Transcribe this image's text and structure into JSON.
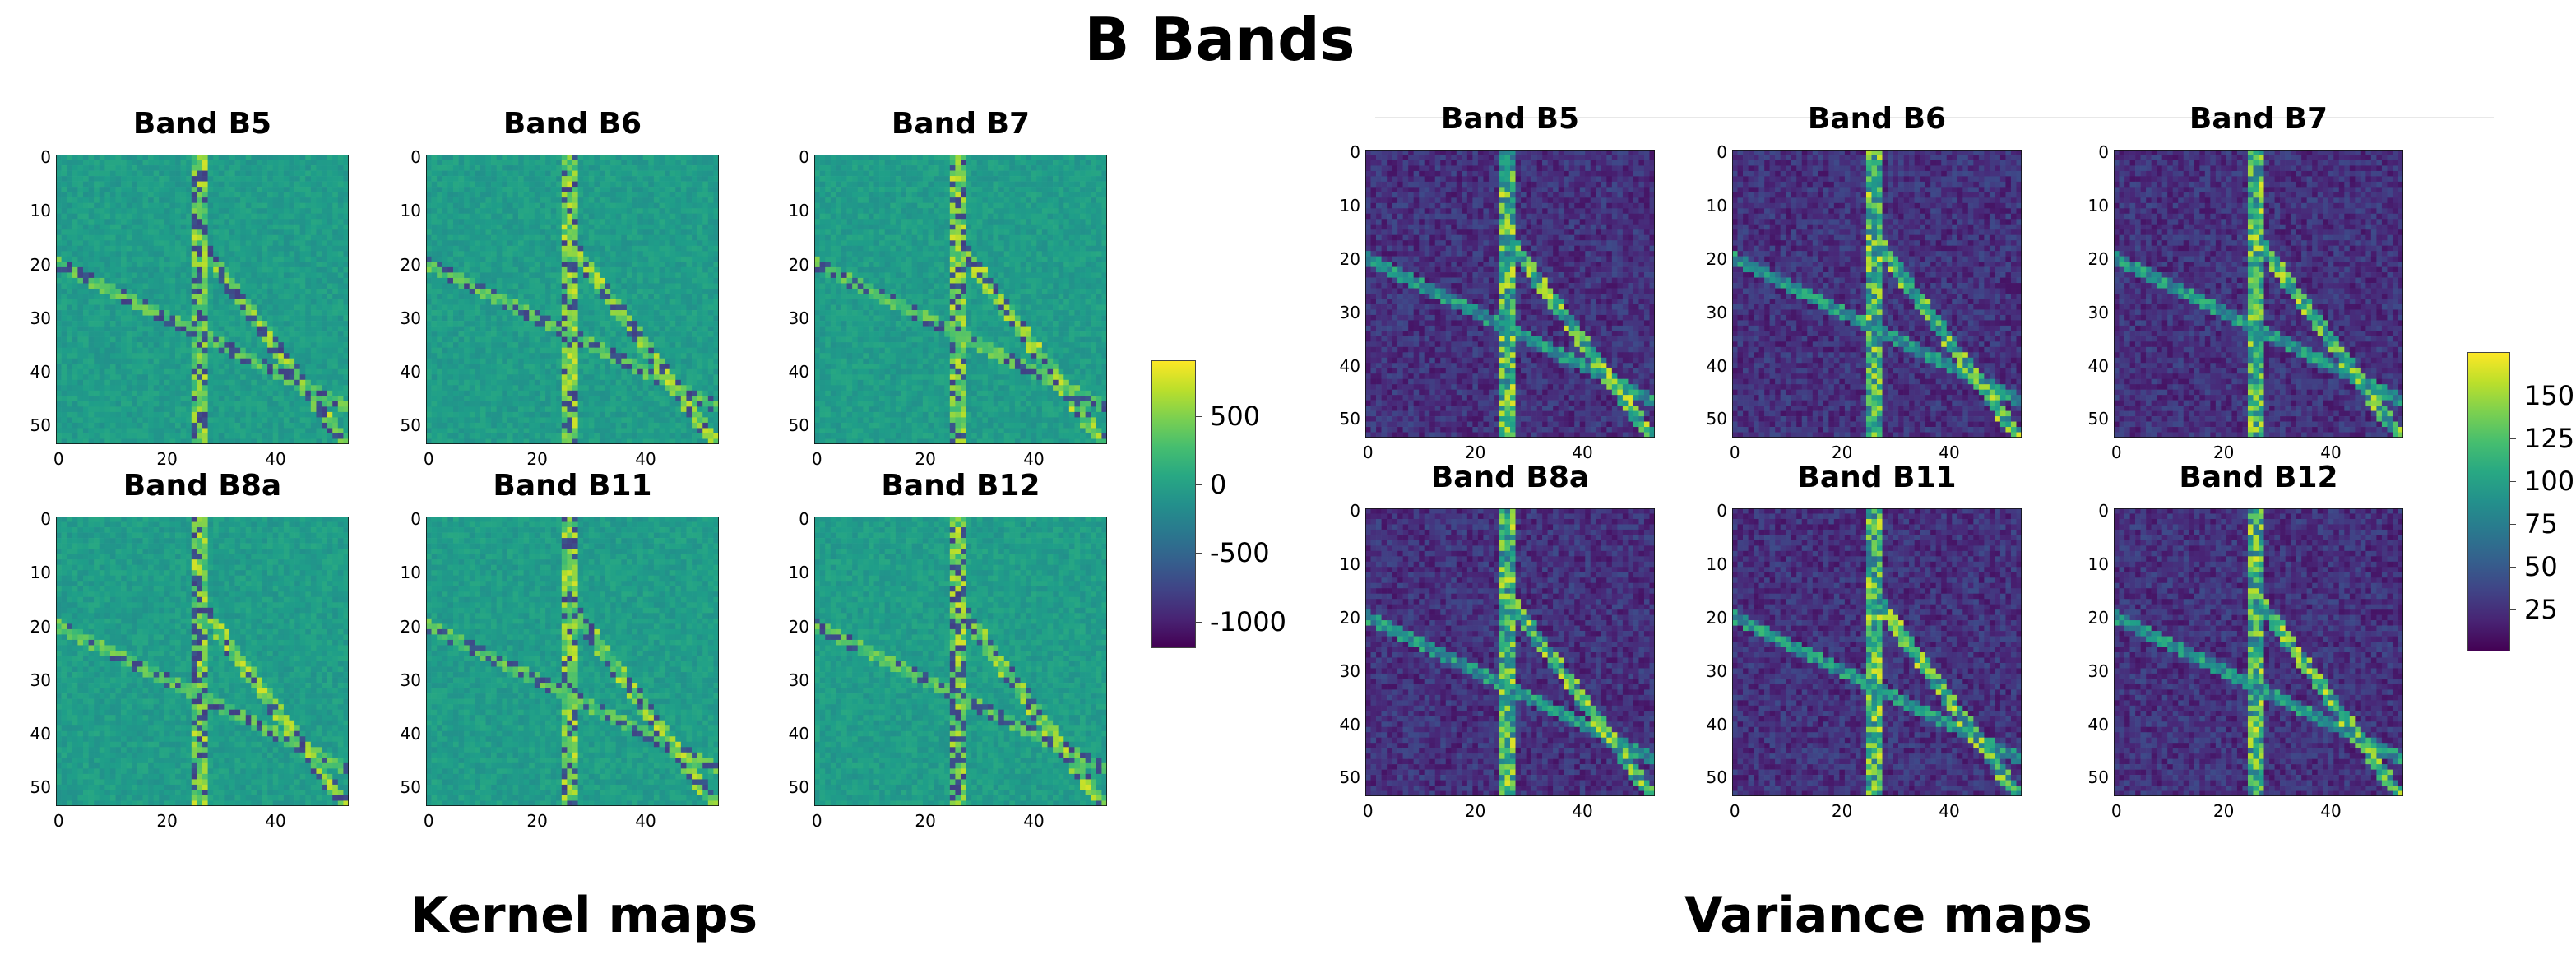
{
  "figure": {
    "title": "B Bands",
    "captions": {
      "left": "Kernel maps",
      "right": "Variance maps"
    }
  },
  "chart_data": [
    {
      "type": "heatmap",
      "group": "kernel",
      "panels": [
        "Band B5",
        "Band B6",
        "Band B7",
        "Band B8a",
        "Band B11",
        "Band B12"
      ],
      "grid_size": [
        54,
        54
      ],
      "xlim": [
        0,
        54
      ],
      "ylim": [
        0,
        54
      ],
      "xticks": [
        0,
        20,
        40
      ],
      "yticks": [
        0,
        10,
        20,
        30,
        40,
        50
      ],
      "colormap": "viridis",
      "colorbar": {
        "range": [
          -1200,
          900
        ],
        "ticks": [
          500,
          0,
          -500,
          -1000
        ]
      }
    },
    {
      "type": "heatmap",
      "group": "variance",
      "panels": [
        "Band B5",
        "Band B6",
        "Band B7",
        "Band B8a",
        "Band B11",
        "Band B12"
      ],
      "grid_size": [
        54,
        54
      ],
      "xlim": [
        0,
        54
      ],
      "ylim": [
        0,
        54
      ],
      "xticks": [
        0,
        20,
        40
      ],
      "yticks": [
        0,
        10,
        20,
        30,
        40,
        50
      ],
      "colormap": "viridis",
      "colorbar": {
        "range": [
          0,
          175
        ],
        "ticks": [
          150,
          125,
          100,
          75,
          50,
          25
        ]
      }
    }
  ]
}
